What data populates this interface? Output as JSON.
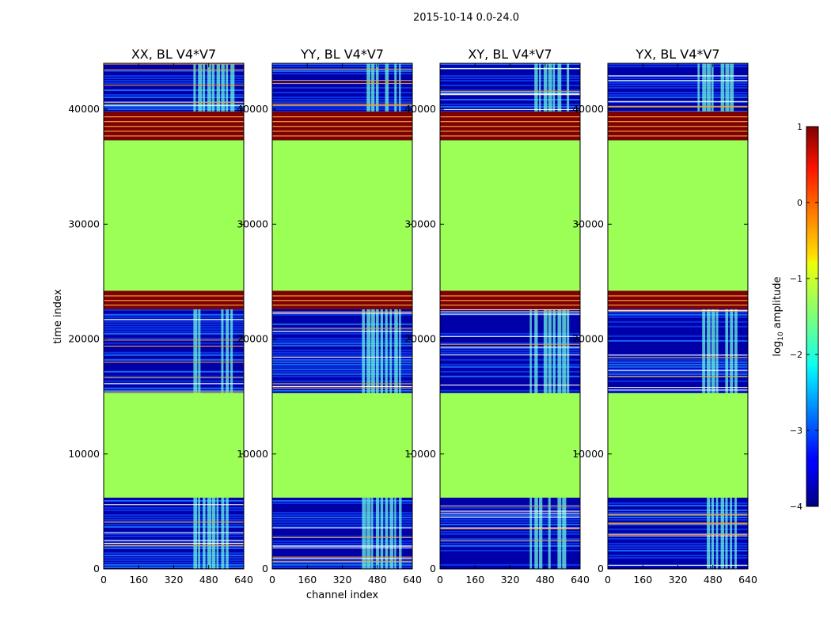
{
  "suptitle": "2015-10-14 0.0-24.0",
  "colors": {
    "flagged": "#9CFF55",
    "saturated": "#7F0000",
    "band": "#F0A040",
    "bg_dark": "#0000A8",
    "bg_blue": "#0A3CF0",
    "noise": "#1E78FF",
    "rfi": "#6CF7DD"
  },
  "chart_data": [
    {
      "type": "heatmap",
      "title": "XX, BL V4*V7",
      "xlabel": "",
      "ylabel": "time index",
      "xlim": [
        0,
        640
      ],
      "ylim": [
        0,
        44000
      ],
      "xticks": [
        "0",
        "160",
        "320",
        "480",
        "640"
      ],
      "yticks": [
        "0",
        "10000",
        "20000",
        "30000",
        "40000"
      ],
      "flagged_rows": [
        [
          6200,
          15300
        ],
        [
          24200,
          37300
        ]
      ],
      "saturated_rows": [
        [
          22600,
          24200
        ],
        [
          37300,
          39800
        ]
      ],
      "rfi_channels": [
        [
          410,
          600
        ]
      ],
      "rfi_rows": [
        [
          0,
          6200
        ],
        [
          15300,
          22600
        ],
        [
          39800,
          44000
        ]
      ]
    },
    {
      "type": "heatmap",
      "title": "YY, BL V4*V7",
      "xlabel": "channel index",
      "ylabel": "",
      "xlim": [
        0,
        640
      ],
      "ylim": [
        0,
        44000
      ],
      "xticks": [
        "0",
        "160",
        "320",
        "480",
        "640"
      ],
      "yticks": [
        "0",
        "10000",
        "20000",
        "30000",
        "40000"
      ],
      "flagged_rows": [
        [
          6200,
          15300
        ],
        [
          24200,
          37300
        ]
      ],
      "saturated_rows": [
        [
          22600,
          24200
        ],
        [
          37300,
          39800
        ]
      ],
      "rfi_channels": [
        [
          410,
          600
        ]
      ],
      "rfi_rows": [
        [
          0,
          6200
        ],
        [
          15300,
          22600
        ],
        [
          39800,
          44000
        ]
      ]
    },
    {
      "type": "heatmap",
      "title": "XY, BL V4*V7",
      "xlabel": "",
      "ylabel": "",
      "xlim": [
        0,
        640
      ],
      "ylim": [
        0,
        44000
      ],
      "xticks": [
        "0",
        "160",
        "320",
        "480",
        "640"
      ],
      "yticks": [
        "0",
        "10000",
        "20000",
        "30000",
        "40000"
      ],
      "flagged_rows": [
        [
          6200,
          15300
        ],
        [
          24200,
          37300
        ]
      ],
      "saturated_rows": [
        [
          22600,
          24200
        ],
        [
          37300,
          39800
        ]
      ],
      "rfi_channels": [
        [
          410,
          600
        ]
      ],
      "rfi_rows": [
        [
          0,
          6200
        ],
        [
          15300,
          22600
        ],
        [
          39800,
          44000
        ]
      ]
    },
    {
      "type": "heatmap",
      "title": "YX, BL V4*V7",
      "xlabel": "",
      "ylabel": "",
      "xlim": [
        0,
        640
      ],
      "ylim": [
        0,
        44000
      ],
      "xticks": [
        "0",
        "160",
        "320",
        "480",
        "640"
      ],
      "yticks": [
        "0",
        "10000",
        "20000",
        "30000",
        "40000"
      ],
      "flagged_rows": [
        [
          6200,
          15300
        ],
        [
          24200,
          37300
        ]
      ],
      "saturated_rows": [
        [
          22600,
          24200
        ],
        [
          37300,
          39800
        ]
      ],
      "rfi_channels": [
        [
          410,
          600
        ]
      ],
      "rfi_rows": [
        [
          0,
          6200
        ],
        [
          15300,
          22600
        ],
        [
          39800,
          44000
        ]
      ]
    }
  ],
  "colorbar": {
    "label": "log",
    "label_sub": "10",
    "label_rest": " amplitude",
    "range": [
      -4,
      1
    ],
    "ticks": [
      "1",
      "0",
      "−1",
      "−2",
      "−3",
      "−4"
    ],
    "colormap": "jet"
  }
}
